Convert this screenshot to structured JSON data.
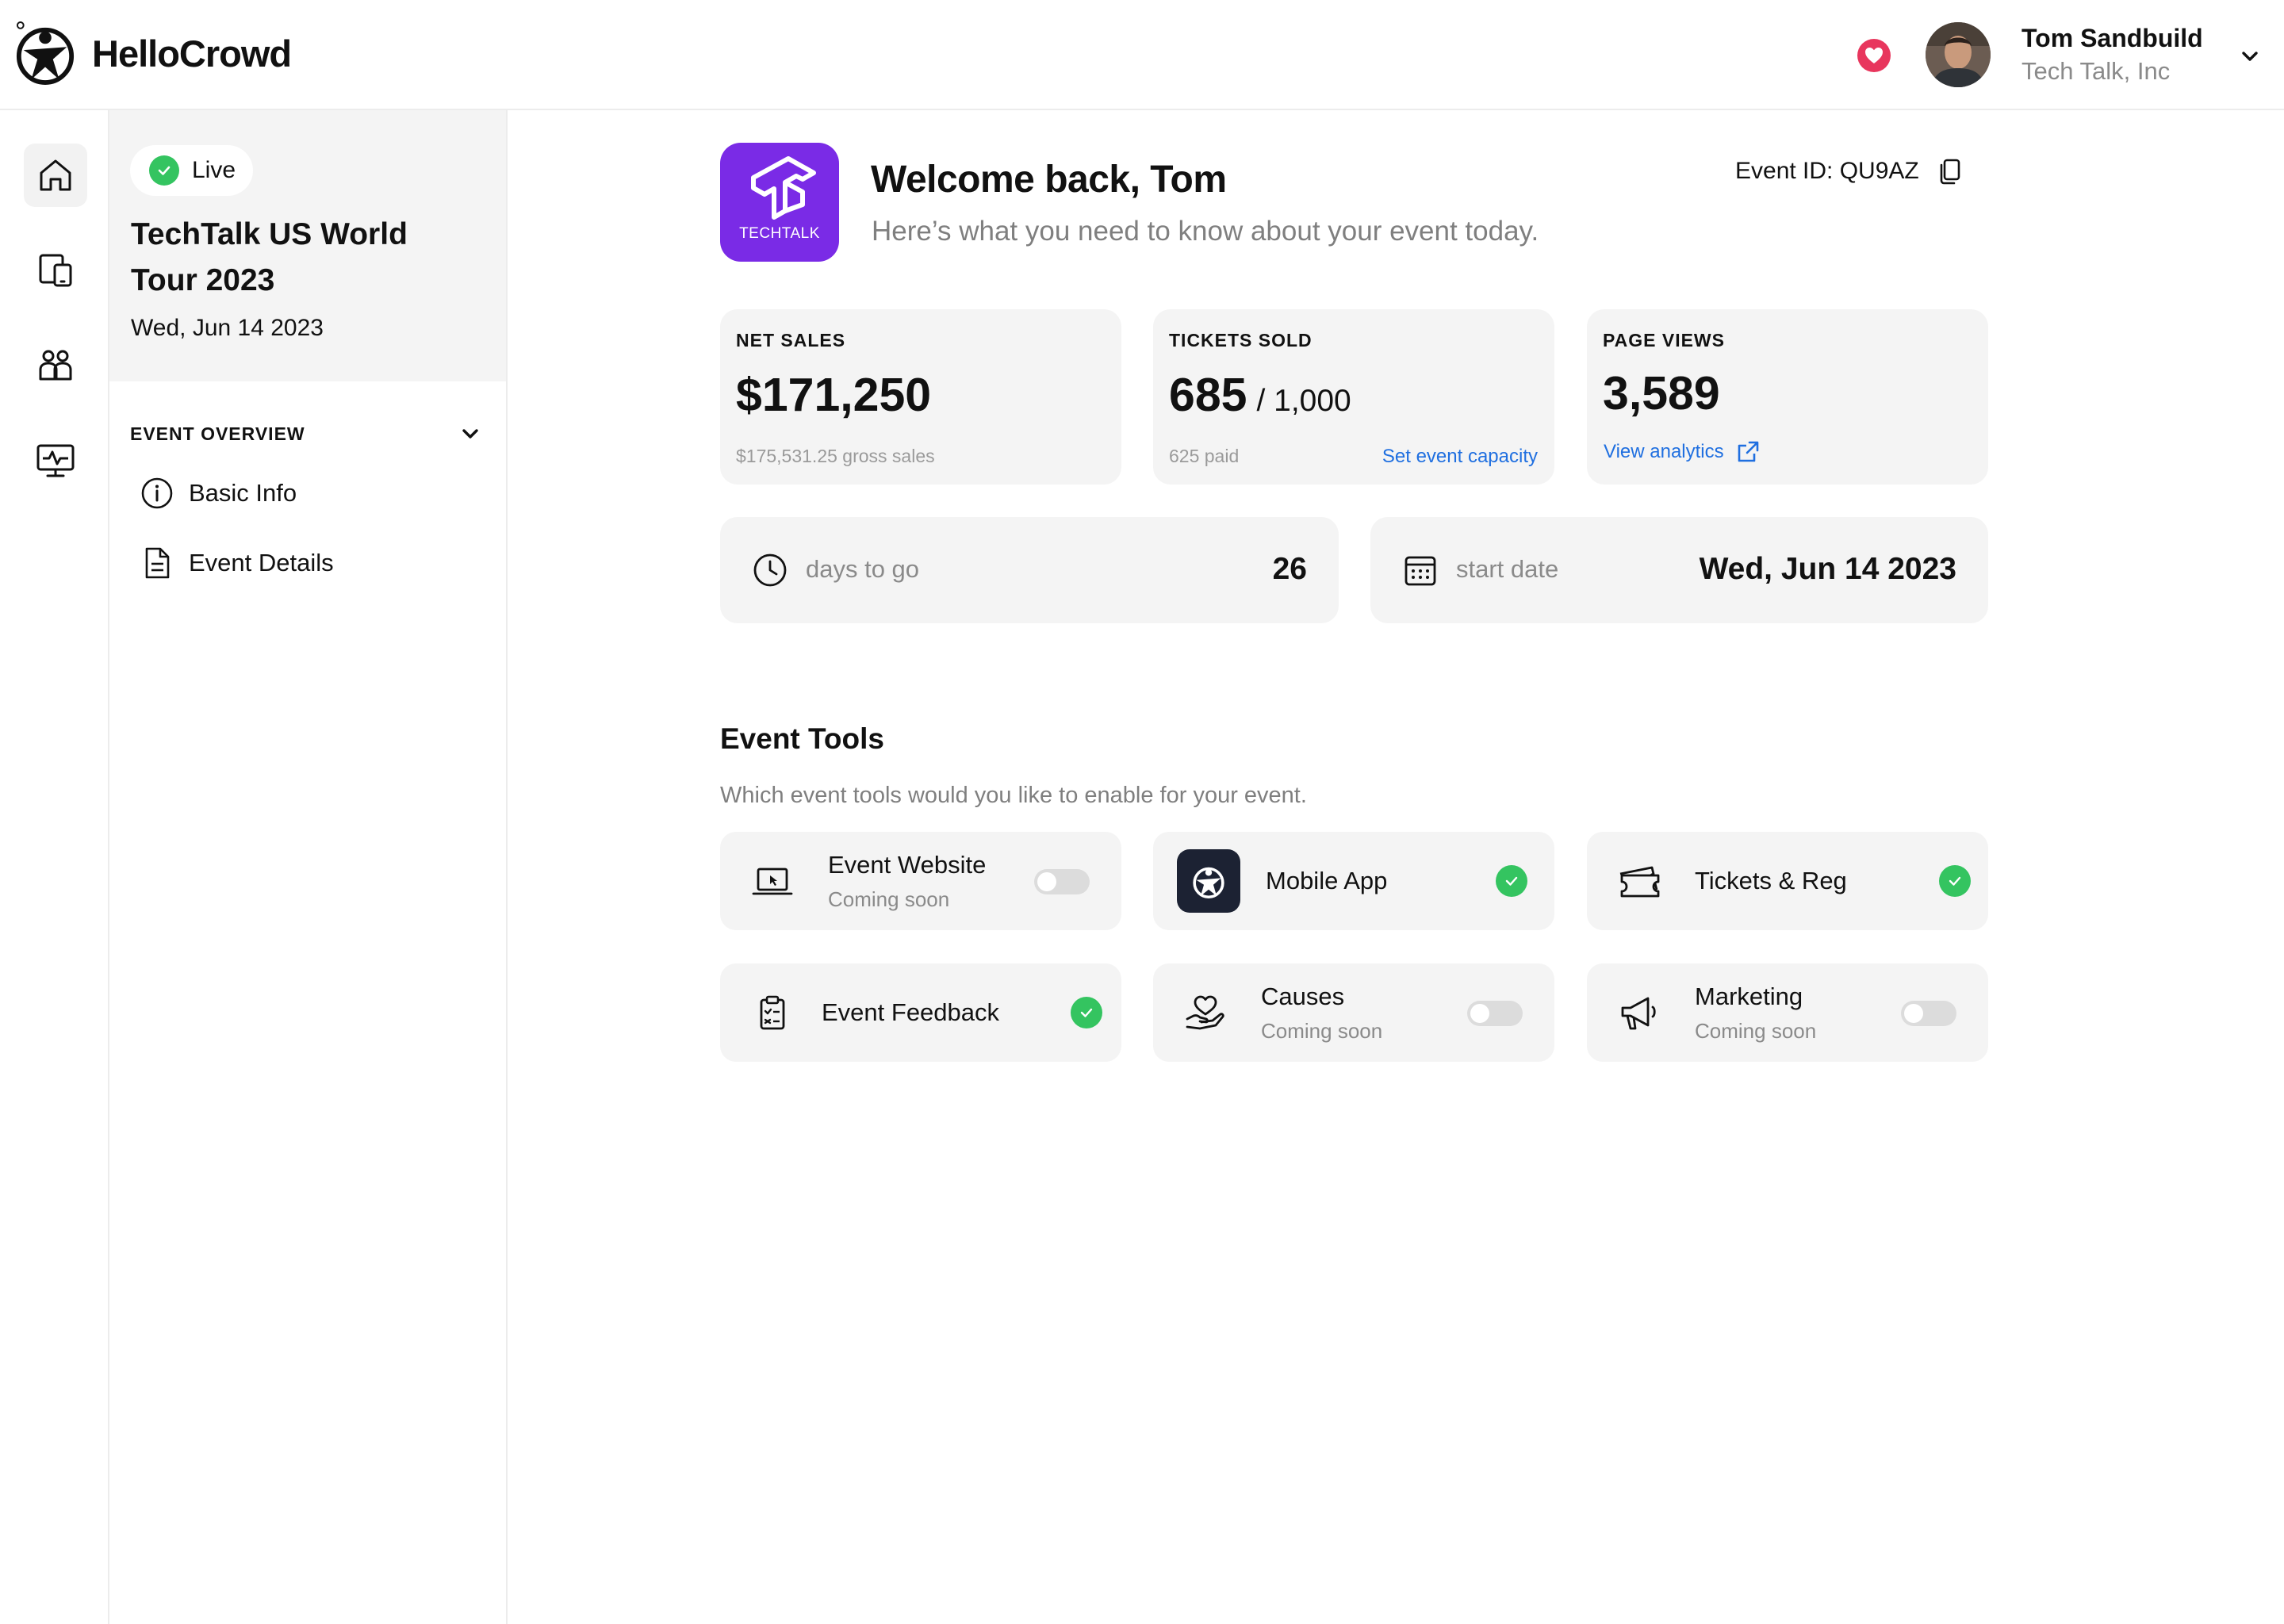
{
  "app": {
    "name": "HelloCrowd"
  },
  "user": {
    "name": "Tom Sandbuild",
    "org": "Tech Talk, Inc"
  },
  "event": {
    "status": "Live",
    "title": "TechTalk US World Tour 2023",
    "date": "Wed, Jun 14 2023",
    "brand_text": "TECHTALK",
    "id_label": "Event ID: QU9AZ"
  },
  "sidebar": {
    "section_label": "EVENT OVERVIEW",
    "items": [
      {
        "label": "Basic Info",
        "icon": "info-icon"
      },
      {
        "label": "Event Details",
        "icon": "document-icon"
      }
    ]
  },
  "rail": [
    {
      "icon": "home-icon",
      "active": true
    },
    {
      "icon": "devices-icon"
    },
    {
      "icon": "people-icon"
    },
    {
      "icon": "monitor-activity-icon"
    }
  ],
  "welcome": {
    "title": "Welcome back, Tom",
    "subtitle": "Here’s what you need to know about your event today."
  },
  "stats": {
    "net_sales": {
      "label": "NET SALES",
      "value": "$171,250",
      "sub": "$175,531.25 gross sales"
    },
    "tickets": {
      "label": "TICKETS SOLD",
      "value": "685",
      "total": "/ 1,000",
      "sub": "625 paid",
      "link": "Set event capacity"
    },
    "page_views": {
      "label": "PAGE VIEWS",
      "value": "3,589",
      "link": "View analytics"
    }
  },
  "countdown": {
    "label": "days to go",
    "value": "26"
  },
  "start": {
    "label": "start date",
    "value": "Wed, Jun 14 2023"
  },
  "tools": {
    "title": "Event Tools",
    "subtitle": "Which event tools would you like to enable for your event.",
    "items": [
      {
        "name": "Event Website",
        "sub": "Coming soon",
        "enabled": false,
        "icon": "laptop-icon"
      },
      {
        "name": "Mobile App",
        "sub": "",
        "enabled": true,
        "icon": "app-logo-icon"
      },
      {
        "name": "Tickets & Reg",
        "sub": "",
        "enabled": true,
        "icon": "ticket-icon"
      },
      {
        "name": "Event Feedback",
        "sub": "",
        "enabled": true,
        "icon": "clipboard-icon"
      },
      {
        "name": "Causes",
        "sub": "Coming soon",
        "enabled": false,
        "icon": "heart-hand-icon"
      },
      {
        "name": "Marketing",
        "sub": "Coming soon",
        "enabled": false,
        "icon": "megaphone-icon"
      }
    ]
  },
  "colors": {
    "accent_link": "#1f6fe0",
    "success": "#34c460",
    "brand": "#7a2be6",
    "heart": "#e8365d"
  }
}
